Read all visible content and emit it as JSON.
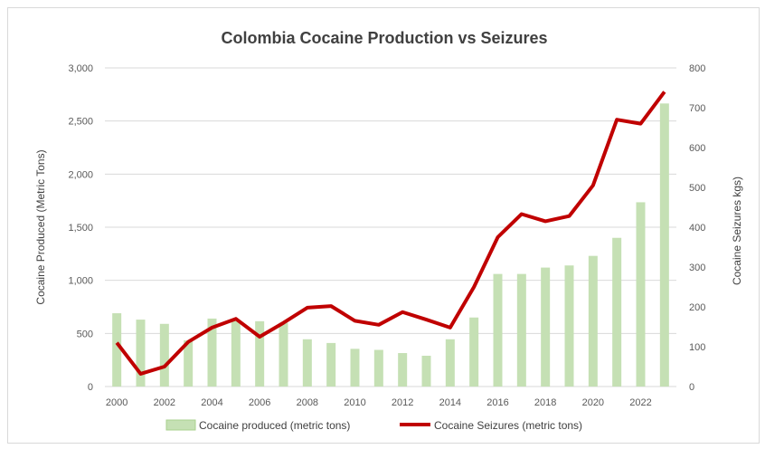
{
  "chart_data": {
    "type": "bar+line",
    "title": "Colombia Cocaine Production vs Seizures",
    "xlabel": "",
    "ylabel": "Cocaine Produced (Metric Tons)",
    "y2label": "Cocaine Seizures kgs)",
    "x": [
      2000,
      2001,
      2002,
      2003,
      2004,
      2005,
      2006,
      2007,
      2008,
      2009,
      2010,
      2011,
      2012,
      2013,
      2014,
      2015,
      2016,
      2017,
      2018,
      2019,
      2020,
      2021,
      2022,
      2023
    ],
    "x_tick_labels": [
      "2000",
      "2002",
      "2004",
      "2006",
      "2008",
      "2010",
      "2012",
      "2014",
      "2016",
      "2018",
      "2020",
      "2022"
    ],
    "ylim": [
      0,
      3000
    ],
    "y_ticks": [
      "0",
      "500",
      "1,000",
      "1,500",
      "2,000",
      "2,500",
      "3,000"
    ],
    "y2lim": [
      0,
      800
    ],
    "y2_ticks": [
      "0",
      "100",
      "200",
      "300",
      "400",
      "500",
      "600",
      "700",
      "800"
    ],
    "grid": true,
    "legend_position": "bottom",
    "series": [
      {
        "name": "Cocaine produced (metric tons)",
        "type": "bar",
        "axis": "left",
        "color": "#c5e0b4",
        "values": [
          690,
          630,
          590,
          435,
          640,
          620,
          615,
          600,
          445,
          410,
          355,
          345,
          315,
          290,
          445,
          650,
          1060,
          1060,
          1120,
          1140,
          1230,
          1400,
          1735,
          2665
        ]
      },
      {
        "name": "Cocaine Seizures (metric tons)",
        "type": "line",
        "axis": "right",
        "color": "#c00000",
        "values": [
          110,
          32,
          50,
          112,
          148,
          170,
          125,
          160,
          198,
          202,
          165,
          155,
          187,
          168,
          148,
          250,
          375,
          433,
          415,
          428,
          505,
          670,
          660,
          740
        ]
      }
    ]
  }
}
